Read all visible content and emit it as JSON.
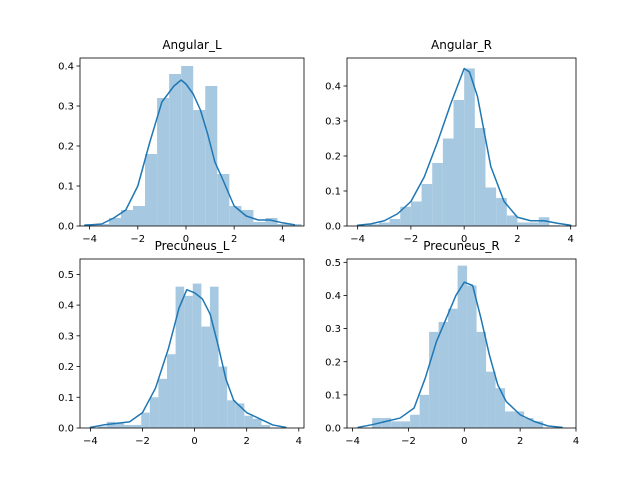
{
  "chart_data": [
    {
      "type": "bar",
      "title": "Angular_L",
      "xticks": [
        "−4",
        "−2",
        "0",
        "2",
        "4"
      ],
      "yticks": [
        "0.0",
        "0.1",
        "0.2",
        "0.3",
        "0.4"
      ],
      "xlim": [
        -4.4,
        4.9
      ],
      "ylim": [
        0,
        0.42
      ],
      "bin_width": 0.5,
      "bins": [
        {
          "x0": -4.2,
          "value": 0.005
        },
        {
          "x0": -3.7,
          "value": 0.005
        },
        {
          "x0": -3.2,
          "value": 0.02
        },
        {
          "x0": -2.7,
          "value": 0.04
        },
        {
          "x0": -2.2,
          "value": 0.05
        },
        {
          "x0": -1.7,
          "value": 0.18
        },
        {
          "x0": -1.2,
          "value": 0.32
        },
        {
          "x0": -0.7,
          "value": 0.38
        },
        {
          "x0": -0.2,
          "value": 0.4
        },
        {
          "x0": 0.3,
          "value": 0.29
        },
        {
          "x0": 0.8,
          "value": 0.35
        },
        {
          "x0": 1.3,
          "value": 0.13
        },
        {
          "x0": 1.8,
          "value": 0.05
        },
        {
          "x0": 2.3,
          "value": 0.04
        },
        {
          "x0": 2.8,
          "value": 0.01
        },
        {
          "x0": 3.3,
          "value": 0.02
        },
        {
          "x0": 3.8,
          "value": 0.005
        },
        {
          "x0": 4.3,
          "value": 0.005
        }
      ],
      "kde": [
        [
          -4.2,
          0.002
        ],
        [
          -3.5,
          0.005
        ],
        [
          -3.0,
          0.02
        ],
        [
          -2.5,
          0.04
        ],
        [
          -2.0,
          0.1
        ],
        [
          -1.5,
          0.21
        ],
        [
          -1.0,
          0.31
        ],
        [
          -0.5,
          0.35
        ],
        [
          -0.2,
          0.365
        ],
        [
          0.0,
          0.355
        ],
        [
          0.3,
          0.33
        ],
        [
          0.6,
          0.29
        ],
        [
          0.9,
          0.23
        ],
        [
          1.2,
          0.16
        ],
        [
          1.5,
          0.12
        ],
        [
          2.0,
          0.05
        ],
        [
          2.5,
          0.025
        ],
        [
          3.0,
          0.015
        ],
        [
          3.5,
          0.015
        ],
        [
          4.0,
          0.008
        ],
        [
          4.5,
          0.003
        ]
      ]
    },
    {
      "type": "bar",
      "title": "Angular_R",
      "xticks": [
        "−4",
        "−2",
        "0",
        "2",
        "4"
      ],
      "yticks": [
        "0.0",
        "0.1",
        "0.2",
        "0.3",
        "0.4"
      ],
      "xlim": [
        -4.4,
        4.2
      ],
      "ylim": [
        0,
        0.48
      ],
      "bin_width": 0.4,
      "bins": [
        {
          "x0": -4.0,
          "value": 0.002
        },
        {
          "x0": -3.6,
          "value": 0.005
        },
        {
          "x0": -3.2,
          "value": 0.01
        },
        {
          "x0": -2.8,
          "value": 0.02
        },
        {
          "x0": -2.4,
          "value": 0.055
        },
        {
          "x0": -2.0,
          "value": 0.07
        },
        {
          "x0": -1.6,
          "value": 0.12
        },
        {
          "x0": -1.2,
          "value": 0.18
        },
        {
          "x0": -0.8,
          "value": 0.25
        },
        {
          "x0": -0.4,
          "value": 0.36
        },
        {
          "x0": 0.0,
          "value": 0.45
        },
        {
          "x0": 0.4,
          "value": 0.28
        },
        {
          "x0": 0.8,
          "value": 0.11
        },
        {
          "x0": 1.2,
          "value": 0.08
        },
        {
          "x0": 1.6,
          "value": 0.03
        },
        {
          "x0": 2.0,
          "value": 0.01
        },
        {
          "x0": 2.4,
          "value": 0.01
        },
        {
          "x0": 2.8,
          "value": 0.025
        },
        {
          "x0": 3.2,
          "value": 0.002
        }
      ],
      "kde": [
        [
          -4.0,
          0.002
        ],
        [
          -3.5,
          0.006
        ],
        [
          -3.0,
          0.015
        ],
        [
          -2.5,
          0.035
        ],
        [
          -2.0,
          0.07
        ],
        [
          -1.5,
          0.14
        ],
        [
          -1.0,
          0.24
        ],
        [
          -0.5,
          0.35
        ],
        [
          -0.2,
          0.41
        ],
        [
          0.0,
          0.45
        ],
        [
          0.2,
          0.44
        ],
        [
          0.5,
          0.37
        ],
        [
          0.8,
          0.25
        ],
        [
          1.0,
          0.17
        ],
        [
          1.5,
          0.07
        ],
        [
          2.0,
          0.025
        ],
        [
          2.5,
          0.015
        ],
        [
          3.0,
          0.015
        ],
        [
          3.5,
          0.008
        ],
        [
          4.0,
          0.002
        ]
      ]
    },
    {
      "type": "bar",
      "title": "Precuneus_L",
      "xticks": [
        "−4",
        "−2",
        "0",
        "2",
        "4"
      ],
      "yticks": [
        "0.0",
        "0.1",
        "0.2",
        "0.3",
        "0.4",
        "0.5"
      ],
      "xlim": [
        -4.4,
        4.2
      ],
      "ylim": [
        0,
        0.55
      ],
      "bin_width": 0.33,
      "bins": [
        {
          "x0": -3.7,
          "value": 0.005
        },
        {
          "x0": -3.37,
          "value": 0.02
        },
        {
          "x0": -3.04,
          "value": 0.015
        },
        {
          "x0": -2.71,
          "value": 0.01
        },
        {
          "x0": -2.38,
          "value": 0.01
        },
        {
          "x0": -2.05,
          "value": 0.05
        },
        {
          "x0": -1.72,
          "value": 0.1
        },
        {
          "x0": -1.39,
          "value": 0.16
        },
        {
          "x0": -1.06,
          "value": 0.24
        },
        {
          "x0": -0.73,
          "value": 0.46
        },
        {
          "x0": -0.4,
          "value": 0.43
        },
        {
          "x0": -0.07,
          "value": 0.47
        },
        {
          "x0": 0.26,
          "value": 0.33
        },
        {
          "x0": 0.59,
          "value": 0.46
        },
        {
          "x0": 0.92,
          "value": 0.2
        },
        {
          "x0": 1.25,
          "value": 0.09
        },
        {
          "x0": 1.58,
          "value": 0.08
        },
        {
          "x0": 1.91,
          "value": 0.04
        },
        {
          "x0": 2.24,
          "value": 0.03
        },
        {
          "x0": 2.57,
          "value": 0.01
        }
      ],
      "kde": [
        [
          -4.0,
          0.002
        ],
        [
          -3.5,
          0.01
        ],
        [
          -3.0,
          0.015
        ],
        [
          -2.5,
          0.02
        ],
        [
          -2.0,
          0.05
        ],
        [
          -1.5,
          0.13
        ],
        [
          -1.0,
          0.26
        ],
        [
          -0.6,
          0.39
        ],
        [
          -0.3,
          0.45
        ],
        [
          0.0,
          0.44
        ],
        [
          0.3,
          0.42
        ],
        [
          0.6,
          0.37
        ],
        [
          0.9,
          0.27
        ],
        [
          1.2,
          0.16
        ],
        [
          1.5,
          0.09
        ],
        [
          2.0,
          0.05
        ],
        [
          2.5,
          0.03
        ],
        [
          3.0,
          0.01
        ],
        [
          3.5,
          0.002
        ]
      ]
    },
    {
      "type": "bar",
      "title": "Precuneus_R",
      "xticks": [
        "−4",
        "−2",
        "0",
        "2",
        "4"
      ],
      "yticks": [
        "0.0",
        "0.1",
        "0.2",
        "0.3",
        "0.4",
        "0.5"
      ],
      "xlim": [
        -4.2,
        4.0
      ],
      "ylim": [
        0,
        0.51
      ],
      "bin_width": 0.34,
      "bins": [
        {
          "x0": -3.3,
          "value": 0.03
        },
        {
          "x0": -2.96,
          "value": 0.03
        },
        {
          "x0": -2.62,
          "value": 0.02
        },
        {
          "x0": -2.28,
          "value": 0.02
        },
        {
          "x0": -1.94,
          "value": 0.04
        },
        {
          "x0": -1.6,
          "value": 0.1
        },
        {
          "x0": -1.26,
          "value": 0.29
        },
        {
          "x0": -0.92,
          "value": 0.32
        },
        {
          "x0": -0.58,
          "value": 0.36
        },
        {
          "x0": -0.24,
          "value": 0.49
        },
        {
          "x0": 0.1,
          "value": 0.43
        },
        {
          "x0": 0.44,
          "value": 0.29
        },
        {
          "x0": 0.78,
          "value": 0.17
        },
        {
          "x0": 1.12,
          "value": 0.12
        },
        {
          "x0": 1.46,
          "value": 0.05
        },
        {
          "x0": 1.8,
          "value": 0.05
        },
        {
          "x0": 2.14,
          "value": 0.03
        },
        {
          "x0": 2.48,
          "value": 0.02
        }
      ],
      "kde": [
        [
          -3.8,
          0.002
        ],
        [
          -3.3,
          0.01
        ],
        [
          -2.8,
          0.02
        ],
        [
          -2.3,
          0.03
        ],
        [
          -1.8,
          0.06
        ],
        [
          -1.4,
          0.15
        ],
        [
          -1.0,
          0.26
        ],
        [
          -0.6,
          0.34
        ],
        [
          -0.3,
          0.4
        ],
        [
          0.0,
          0.44
        ],
        [
          0.3,
          0.43
        ],
        [
          0.6,
          0.33
        ],
        [
          0.9,
          0.22
        ],
        [
          1.2,
          0.13
        ],
        [
          1.5,
          0.08
        ],
        [
          2.0,
          0.04
        ],
        [
          2.5,
          0.02
        ],
        [
          3.0,
          0.006
        ],
        [
          3.5,
          0.002
        ]
      ]
    }
  ]
}
